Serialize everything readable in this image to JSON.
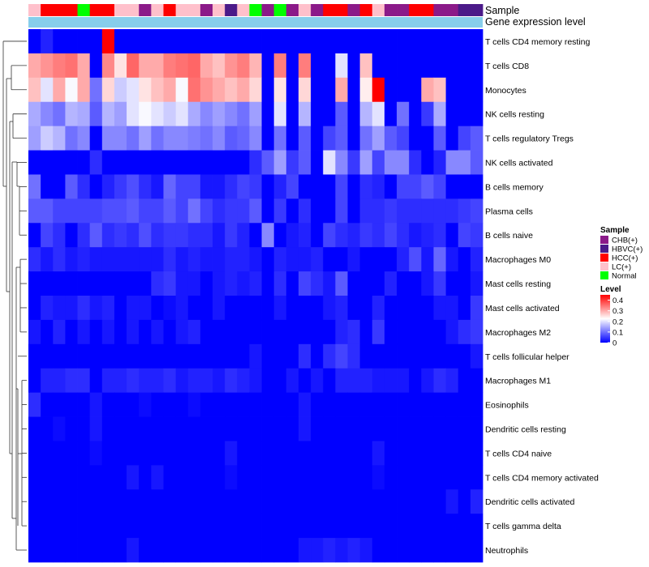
{
  "chart_data": {
    "type": "heatmap",
    "title": "",
    "annotation_rows": [
      "Sample",
      "Gene expression level"
    ],
    "sample_groups": [
      {
        "name": "CHB(+)",
        "color": "#8b1a89"
      },
      {
        "name": "HBVC(+)",
        "color": "#4b1a89"
      },
      {
        "name": "HCC(+)",
        "color": "#ff0000"
      },
      {
        "name": "LC(+)",
        "color": "#ffc0cb"
      },
      {
        "name": "Normal",
        "color": "#00ff00"
      }
    ],
    "sample_annotation": [
      "LC(+)",
      "HCC(+)",
      "HCC(+)",
      "HCC(+)",
      "Normal",
      "HCC(+)",
      "HCC(+)",
      "LC(+)",
      "LC(+)",
      "CHB(+)",
      "LC(+)",
      "HCC(+)",
      "LC(+)",
      "LC(+)",
      "CHB(+)",
      "LC(+)",
      "HBVC(+)",
      "LC(+)",
      "Normal",
      "CHB(+)",
      "Normal",
      "CHB(+)",
      "LC(+)",
      "CHB(+)",
      "HCC(+)",
      "HCC(+)",
      "CHB(+)",
      "HCC(+)",
      "LC(+)",
      "CHB(+)",
      "CHB(+)",
      "HCC(+)",
      "HCC(+)",
      "CHB(+)",
      "CHB(+)",
      "HBVC(+)",
      "HBVC(+)"
    ],
    "gene_expression_color": "#87ceeb",
    "rows": [
      "T cells CD4 memory resting",
      "T cells CD8",
      "Monocytes",
      "NK cells resting",
      "T cells regulatory  Tregs",
      "NK cells activated",
      "B cells memory",
      "Plasma cells",
      "B cells naive",
      "Macrophages M0",
      "Mast cells resting",
      "Mast cells activated",
      "Macrophages M2",
      "T cells follicular helper",
      "Macrophages M1",
      "Eosinophils",
      "Dendritic cells resting",
      "T cells CD4 naive",
      "T cells CD4 memory activated",
      "Dendritic cells activated",
      "T cells gamma delta",
      "Neutrophils"
    ],
    "legend_title_samples": "Sample",
    "legend_title_level": "Level",
    "level_ticks": [
      "0.4",
      "0.3",
      "0.2",
      "0.1",
      "0"
    ],
    "color_scale": {
      "min": 0,
      "max": 0.45,
      "low": "#0000ff",
      "mid": "#ffffff",
      "high": "#ff0000"
    },
    "values": [
      [
        0,
        0.03,
        0,
        0,
        0,
        0,
        0.45,
        0,
        0,
        0,
        0,
        0,
        0,
        0,
        0,
        0,
        0,
        0,
        0,
        0,
        0,
        0,
        0,
        0,
        0,
        0,
        0,
        0,
        0,
        0,
        0,
        0,
        0,
        0,
        0,
        0,
        0
      ],
      [
        0.3,
        0.32,
        0.34,
        0.35,
        0.3,
        0,
        0.33,
        0.25,
        0.36,
        0.3,
        0.3,
        0.34,
        0.35,
        0.36,
        0.3,
        0.28,
        0.32,
        0.34,
        0.29,
        0,
        0.34,
        0,
        0.34,
        0,
        0,
        0.2,
        0,
        0.28,
        0,
        0,
        0,
        0,
        0,
        0,
        0,
        0,
        0
      ],
      [
        0.28,
        0.2,
        0.3,
        0.22,
        0.3,
        0.1,
        0.26,
        0.18,
        0.2,
        0.25,
        0.28,
        0.3,
        0.22,
        0.35,
        0.32,
        0.3,
        0.28,
        0.3,
        0.26,
        0,
        0.25,
        0,
        0.26,
        0,
        0,
        0.3,
        0,
        0.24,
        0.45,
        0,
        0,
        0,
        0.3,
        0.28,
        0,
        0,
        0
      ],
      [
        0.15,
        0.12,
        0.1,
        0.16,
        0.15,
        0.08,
        0.16,
        0.14,
        0.2,
        0.22,
        0.2,
        0.18,
        0.2,
        0.15,
        0.12,
        0.14,
        0.12,
        0.1,
        0.14,
        0,
        0.2,
        0,
        0.16,
        0,
        0,
        0.08,
        0,
        0.16,
        0.2,
        0,
        0.1,
        0,
        0.05,
        0.15,
        0,
        0,
        0
      ],
      [
        0.14,
        0.18,
        0.16,
        0.1,
        0.12,
        0,
        0.12,
        0.12,
        0.1,
        0.14,
        0.1,
        0.12,
        0.12,
        0.11,
        0.1,
        0.12,
        0.08,
        0.09,
        0.12,
        0,
        0.1,
        0,
        0.08,
        0,
        0.06,
        0.08,
        0,
        0.1,
        0.14,
        0.08,
        0.06,
        0,
        0,
        0.08,
        0,
        0.06,
        0.08
      ],
      [
        0,
        0,
        0,
        0,
        0,
        0.04,
        0,
        0,
        0,
        0,
        0,
        0,
        0,
        0,
        0,
        0,
        0,
        0,
        0.04,
        0.08,
        0.14,
        0.05,
        0.08,
        0,
        0.2,
        0.12,
        0.05,
        0.14,
        0.06,
        0.12,
        0.12,
        0.04,
        0,
        0.03,
        0.12,
        0.12,
        0.08
      ],
      [
        0.1,
        0,
        0,
        0.08,
        0.04,
        0,
        0.03,
        0.05,
        0.07,
        0.04,
        0.02,
        0.09,
        0.06,
        0.06,
        0.02,
        0.02,
        0.04,
        0.06,
        0.05,
        0,
        0.03,
        0.06,
        0,
        0,
        0,
        0.06,
        0,
        0.04,
        0.03,
        0,
        0.06,
        0.06,
        0.08,
        0.06,
        0,
        0,
        0
      ],
      [
        0.08,
        0.08,
        0.06,
        0.06,
        0.06,
        0.06,
        0.07,
        0.07,
        0.08,
        0.06,
        0.06,
        0.08,
        0.06,
        0.1,
        0.06,
        0.04,
        0.05,
        0.05,
        0.08,
        0,
        0.05,
        0,
        0.04,
        0,
        0,
        0.06,
        0,
        0.04,
        0.04,
        0.05,
        0.04,
        0.04,
        0.04,
        0.04,
        0.04,
        0.05,
        0.06
      ],
      [
        0,
        0.06,
        0.04,
        0,
        0.04,
        0.08,
        0.04,
        0.05,
        0.04,
        0.07,
        0.04,
        0.05,
        0.05,
        0.04,
        0.04,
        0.02,
        0.05,
        0.03,
        0,
        0.12,
        0,
        0.02,
        0.03,
        0,
        0.06,
        0.04,
        0.03,
        0.05,
        0.04,
        0.06,
        0.04,
        0.02,
        0.03,
        0.04,
        0,
        0.06,
        0.05
      ],
      [
        0.04,
        0.02,
        0.04,
        0.02,
        0.03,
        0.02,
        0.02,
        0.02,
        0.02,
        0.02,
        0.02,
        0.04,
        0.02,
        0.03,
        0.02,
        0.02,
        0.03,
        0.03,
        0.02,
        0,
        0.03,
        0.02,
        0.02,
        0.03,
        0,
        0,
        0.02,
        0,
        0,
        0,
        0.03,
        0.07,
        0.02,
        0.09,
        0.02,
        0,
        0.03
      ],
      [
        0,
        0,
        0,
        0,
        0,
        0,
        0,
        0,
        0,
        0,
        0.04,
        0.05,
        0.02,
        0.02,
        0,
        0.02,
        0.03,
        0.02,
        0.03,
        0,
        0.04,
        0,
        0.06,
        0.04,
        0.02,
        0.08,
        0,
        0,
        0,
        0.03,
        0,
        0,
        0.02,
        0.05,
        0,
        0,
        0.02
      ],
      [
        0,
        0.03,
        0.02,
        0.02,
        0.04,
        0.02,
        0.03,
        0,
        0.02,
        0.02,
        0,
        0.01,
        0.02,
        0,
        0,
        0.02,
        0,
        0,
        0,
        0,
        0.02,
        0,
        0,
        0,
        0.02,
        0.03,
        0,
        0,
        0.03,
        0,
        0,
        0,
        0,
        0.02,
        0.02,
        0,
        0.05
      ],
      [
        0.02,
        0,
        0.03,
        0,
        0.02,
        0,
        0.02,
        0,
        0.02,
        0,
        0.02,
        0,
        0.02,
        0.03,
        0,
        0,
        0,
        0,
        0,
        0,
        0,
        0,
        0,
        0,
        0,
        0.03,
        0.04,
        0,
        0.05,
        0,
        0,
        0,
        0,
        0,
        0.02,
        0.04,
        0.05
      ],
      [
        0,
        0,
        0,
        0,
        0,
        0,
        0,
        0,
        0,
        0,
        0,
        0,
        0,
        0,
        0,
        0,
        0,
        0,
        0.02,
        0,
        0,
        0,
        0.04,
        0,
        0.04,
        0.06,
        0.04,
        0,
        0,
        0,
        0,
        0,
        0,
        0,
        0,
        0,
        0.02
      ],
      [
        0,
        0.03,
        0.03,
        0.04,
        0.04,
        0,
        0.03,
        0.03,
        0.04,
        0.03,
        0.03,
        0.04,
        0.02,
        0.03,
        0.03,
        0.02,
        0.04,
        0.03,
        0.02,
        0,
        0,
        0.02,
        0,
        0.02,
        0,
        0.03,
        0.03,
        0.03,
        0.02,
        0.02,
        0.02,
        0,
        0.02,
        0.04,
        0.03,
        0,
        0
      ],
      [
        0.04,
        0,
        0,
        0,
        0,
        0.02,
        0,
        0,
        0,
        0.01,
        0,
        0,
        0,
        0.01,
        0,
        0,
        0,
        0,
        0,
        0,
        0,
        0,
        0.02,
        0,
        0,
        0,
        0,
        0,
        0,
        0,
        0,
        0,
        0,
        0,
        0,
        0,
        0
      ],
      [
        0,
        0,
        0.01,
        0,
        0,
        0.02,
        0,
        0,
        0,
        0,
        0,
        0,
        0,
        0,
        0,
        0,
        0,
        0,
        0,
        0,
        0,
        0,
        0.02,
        0,
        0,
        0,
        0,
        0,
        0,
        0,
        0,
        0,
        0,
        0,
        0,
        0,
        0
      ],
      [
        0,
        0,
        0,
        0,
        0,
        0.01,
        0,
        0,
        0,
        0,
        0,
        0,
        0,
        0,
        0,
        0,
        0.02,
        0,
        0,
        0,
        0,
        0,
        0,
        0,
        0,
        0,
        0,
        0,
        0.02,
        0,
        0,
        0,
        0,
        0,
        0,
        0,
        0
      ],
      [
        0,
        0,
        0,
        0,
        0,
        0,
        0,
        0,
        0.02,
        0,
        0.02,
        0,
        0,
        0,
        0,
        0,
        0.01,
        0,
        0,
        0,
        0,
        0,
        0,
        0,
        0,
        0,
        0,
        0,
        0.01,
        0,
        0,
        0,
        0,
        0,
        0,
        0,
        0
      ],
      [
        0,
        0,
        0,
        0,
        0,
        0,
        0,
        0,
        0,
        0,
        0,
        0,
        0,
        0,
        0,
        0,
        0,
        0,
        0,
        0,
        0,
        0,
        0,
        0,
        0,
        0,
        0,
        0,
        0,
        0,
        0,
        0,
        0,
        0,
        0.02,
        0,
        0.03
      ],
      [
        0,
        0,
        0,
        0,
        0,
        0,
        0,
        0,
        0,
        0,
        0,
        0,
        0,
        0,
        0,
        0,
        0,
        0,
        0,
        0,
        0,
        0,
        0,
        0,
        0,
        0,
        0,
        0,
        0,
        0,
        0,
        0,
        0,
        0,
        0,
        0,
        0
      ],
      [
        0,
        0,
        0,
        0,
        0,
        0,
        0,
        0,
        0.02,
        0,
        0,
        0,
        0,
        0,
        0,
        0,
        0,
        0,
        0,
        0,
        0,
        0,
        0.02,
        0.02,
        0.03,
        0.02,
        0.03,
        0.02,
        0,
        0,
        0,
        0,
        0,
        0,
        0,
        0,
        0
      ]
    ]
  }
}
